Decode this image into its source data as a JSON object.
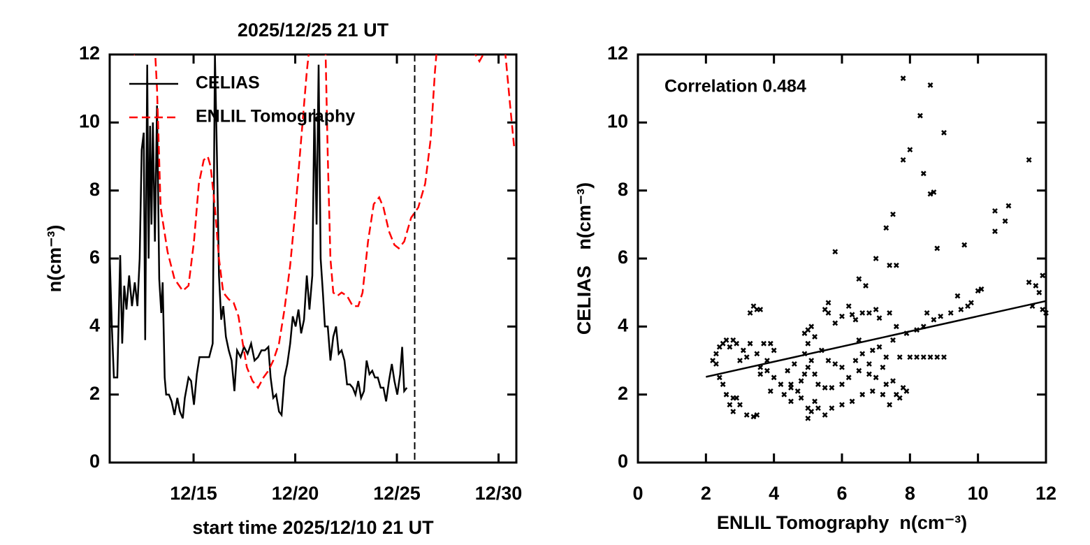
{
  "chart_data": [
    {
      "type": "line",
      "title": "2025/12/25 21 UT",
      "xlabel": "start time 2025/12/10 21 UT",
      "ylabel": "n(cm⁻³)",
      "xlim": [
        10.875,
        30.875
      ],
      "xticks": [
        {
          "value": 15,
          "label": "12/15"
        },
        {
          "value": 20,
          "label": "12/20"
        },
        {
          "value": 25,
          "label": "12/25"
        },
        {
          "value": 30,
          "label": "12/30"
        }
      ],
      "ylim": [
        0,
        12
      ],
      "yticks": [
        0,
        2,
        4,
        6,
        8,
        10,
        12
      ],
      "legend": "upper left",
      "marker_x": 25.875,
      "series": [
        {
          "name": "CELIAS",
          "color": "#000000",
          "dash": "solid",
          "x": [
            10.88,
            10.98,
            11.08,
            11.25,
            11.39,
            11.49,
            11.59,
            11.7,
            11.83,
            11.97,
            12.11,
            12.24,
            12.35,
            12.45,
            12.55,
            12.62,
            12.72,
            12.79,
            12.86,
            12.93,
            13.0,
            13.1,
            13.2,
            13.31,
            13.41,
            13.48,
            13.58,
            13.65,
            13.79,
            13.92,
            14.06,
            14.2,
            14.33,
            14.47,
            14.57,
            14.75,
            14.88,
            15.02,
            15.16,
            15.29,
            15.77,
            15.94,
            16.05,
            16.15,
            16.25,
            16.36,
            16.46,
            16.59,
            16.73,
            16.87,
            17.01,
            17.14,
            17.31,
            17.48,
            17.66,
            17.83,
            18.0,
            18.17,
            18.34,
            18.51,
            18.68,
            18.79,
            18.92,
            19.06,
            19.2,
            19.33,
            19.47,
            19.61,
            19.75,
            19.88,
            20.02,
            20.16,
            20.29,
            20.43,
            20.57,
            20.7,
            20.84,
            20.94,
            21.05,
            21.15,
            21.25,
            21.36,
            21.46,
            21.6,
            21.73,
            21.87,
            22.01,
            22.14,
            22.28,
            22.42,
            22.55,
            22.69,
            22.83,
            22.96,
            23.1,
            23.24,
            23.38,
            23.51,
            23.65,
            23.79,
            23.92,
            24.06,
            24.2,
            24.34,
            24.47,
            24.61,
            24.75,
            24.88,
            25.02,
            25.16,
            25.26,
            25.36,
            25.49
          ],
          "values": [
            6.0,
            4.0,
            2.5,
            2.5,
            6.1,
            3.5,
            5.2,
            4.5,
            5.5,
            4.6,
            5.3,
            4.6,
            6.0,
            9.2,
            9.7,
            3.6,
            11.7,
            6.0,
            9.9,
            7.0,
            10.0,
            6.5,
            10.5,
            5.4,
            4.4,
            5.3,
            2.5,
            2.0,
            2.0,
            1.8,
            1.4,
            1.9,
            1.5,
            1.3,
            1.9,
            2.5,
            2.4,
            1.7,
            2.6,
            3.1,
            3.1,
            3.5,
            12.0,
            9.0,
            5.5,
            4.2,
            4.6,
            3.7,
            3.3,
            3.0,
            2.1,
            3.3,
            3.1,
            3.4,
            3.2,
            3.5,
            3.0,
            3.1,
            3.3,
            3.3,
            3.4,
            2.5,
            1.9,
            2.0,
            1.5,
            1.4,
            2.5,
            2.9,
            3.5,
            4.3,
            4.0,
            4.5,
            3.8,
            4.2,
            5.5,
            4.5,
            5.5,
            10.4,
            7.0,
            11.7,
            6.0,
            5.0,
            4.0,
            4.0,
            3.0,
            3.7,
            4.0,
            3.2,
            3.3,
            3.0,
            2.3,
            2.3,
            2.2,
            2.0,
            2.4,
            1.9,
            2.1,
            3.0,
            2.6,
            2.7,
            2.5,
            2.5,
            2.2,
            2.2,
            1.8,
            2.4,
            2.9,
            2.4,
            2.0,
            2.6,
            3.4,
            2.1,
            2.2
          ]
        },
        {
          "name": "ENLIL Tomography",
          "color": "#ff0000",
          "dash": "dashed",
          "x": [
            11.66,
            11.9,
            12.07,
            12.24,
            13.03,
            13.2,
            13.38,
            13.72,
            14.06,
            14.47,
            14.75,
            15.02,
            15.26,
            15.5,
            15.7,
            15.84,
            16.05,
            16.25,
            16.46,
            16.73,
            16.97,
            17.21,
            17.42,
            17.62,
            17.9,
            18.17,
            18.44,
            18.68,
            18.92,
            19.2,
            19.47,
            19.75,
            20.02,
            20.29,
            20.57,
            20.84,
            21.46,
            21.6,
            21.73,
            21.87,
            22.07,
            22.28,
            22.55,
            22.83,
            23.1,
            23.31,
            23.58,
            23.86,
            24.13,
            24.34,
            24.61,
            24.88,
            25.09,
            25.36,
            25.7,
            26.05,
            26.39,
            26.66,
            26.87,
            27.08,
            28.65,
            28.86,
            29.06,
            29.34,
            29.47,
            30.16,
            30.37,
            30.57,
            30.78
          ],
          "values": [
            13,
            12.0,
            12.0,
            13,
            13,
            11,
            7.5,
            6.2,
            5.4,
            5.05,
            5.2,
            6.5,
            8.2,
            8.9,
            9.0,
            8.7,
            7.5,
            6.0,
            5.0,
            4.8,
            4.7,
            4.3,
            3.5,
            2.8,
            2.4,
            2.2,
            2.5,
            2.7,
            3.0,
            3.5,
            4.5,
            5.8,
            7.5,
            9.5,
            11.5,
            13,
            13,
            9,
            6,
            5.0,
            4.9,
            5.0,
            4.9,
            4.6,
            4.6,
            5.0,
            6.5,
            7.6,
            7.8,
            7.5,
            6.8,
            6.4,
            6.3,
            6.5,
            7.2,
            7.5,
            8.2,
            9.5,
            11.5,
            13,
            13,
            12.0,
            11.8,
            12.1,
            13,
            13,
            11.8,
            10.5,
            9.2
          ]
        }
      ]
    },
    {
      "type": "scatter",
      "xlabel": "ENLIL Tomography  n(cm⁻³)",
      "ylabel": "CELIAS   n(cm⁻³)",
      "annotation": "Correlation 0.484",
      "xlim": [
        0,
        12
      ],
      "xticks": [
        0,
        2,
        4,
        6,
        8,
        10,
        12
      ],
      "ylim": [
        0,
        12
      ],
      "yticks": [
        0,
        2,
        4,
        6,
        8,
        10,
        12
      ],
      "color": "#000000",
      "fit": {
        "x": [
          2,
          12
        ],
        "values": [
          2.52,
          4.75
        ]
      },
      "x": [
        7.8,
        8.6,
        8.3,
        9.0,
        8.0,
        7.8,
        8.4,
        8.6,
        8.7,
        11.5,
        10.5,
        10.9,
        10.8,
        10.5,
        7.5,
        7.3,
        5.8,
        8.8,
        9.6,
        7.0,
        7.6,
        7.4,
        6.5,
        6.7,
        11.5,
        11.9,
        11.7,
        11.8,
        11.6,
        11.9,
        12.0,
        10.1,
        10.0,
        9.4,
        9.8,
        9.7,
        9.5,
        9.2,
        8.9,
        8.5,
        8.7,
        8.4,
        7.9,
        8.2,
        7.6,
        7.4,
        7.1,
        7.0,
        6.8,
        6.6,
        6.4,
        6.3,
        6.2,
        6.0,
        5.8,
        5.6,
        5.5,
        5.6,
        3.4,
        3.5,
        3.3,
        3.6,
        5.0,
        5.1,
        4.9,
        5.2,
        5.0,
        4.9,
        5.1,
        5.0,
        5.2,
        4.8,
        5.3,
        5.5,
        5.7,
        6.0,
        6.2,
        6.5,
        6.8,
        7.0,
        7.3,
        7.5,
        7.8,
        7.9,
        7.7,
        7.6,
        7.4,
        7.2,
        6.9,
        6.6,
        6.3,
        6.0,
        5.7,
        5.5,
        5.3,
        5.1,
        5.0,
        5.0,
        5.2,
        4.8,
        4.7,
        4.5,
        4.2,
        4.0,
        3.8,
        3.6,
        4.4,
        4.6,
        4.9,
        5.4,
        5.6,
        5.8,
        6.0,
        6.4,
        6.6,
        6.9,
        7.1,
        7.3,
        7.7,
        8.0,
        8.2,
        8.4,
        8.6,
        8.8,
        9.0,
        7.5,
        6.5,
        6.8,
        7.2,
        2.3,
        2.4,
        2.3,
        2.2,
        2.5,
        2.6,
        2.7,
        2.8,
        2.9,
        3.1,
        3.3,
        3.5,
        3.7,
        3.9,
        4.0,
        3.0,
        3.2,
        3.8,
        3.6,
        2.5,
        2.6,
        2.7,
        2.8,
        2.9,
        2.8,
        3.0,
        3.2,
        3.4,
        3.5,
        2.4,
        4.3,
        4.5,
        4.5,
        3.9
      ],
      "values": [
        11.3,
        11.1,
        10.2,
        9.7,
        9.2,
        8.9,
        8.5,
        7.9,
        7.95,
        8.9,
        7.4,
        7.55,
        7.1,
        6.8,
        7.3,
        6.9,
        6.2,
        6.3,
        6.4,
        6.0,
        5.8,
        5.8,
        5.4,
        5.2,
        5.3,
        5.5,
        5.2,
        5.0,
        4.6,
        4.5,
        4.4,
        5.1,
        5.05,
        4.9,
        4.7,
        4.6,
        4.5,
        4.4,
        4.3,
        4.4,
        4.2,
        4.0,
        3.8,
        3.9,
        4.0,
        4.4,
        4.25,
        4.5,
        4.4,
        4.4,
        4.2,
        4.35,
        4.6,
        4.3,
        4.1,
        4.7,
        4.5,
        4.4,
        4.6,
        4.5,
        4.4,
        4.5,
        3.9,
        4.0,
        3.8,
        3.7,
        3.5,
        3.2,
        3.0,
        2.8,
        2.6,
        2.4,
        2.3,
        2.2,
        2.2,
        2.3,
        2.5,
        2.7,
        2.6,
        2.5,
        2.3,
        2.4,
        2.2,
        2.1,
        1.9,
        2.0,
        1.7,
        2.0,
        2.1,
        2.0,
        1.8,
        1.7,
        1.6,
        1.4,
        1.6,
        1.5,
        1.3,
        1.6,
        1.8,
        1.9,
        2.1,
        2.2,
        2.3,
        2.5,
        2.7,
        2.6,
        2.7,
        2.9,
        2.6,
        3.3,
        3.0,
        2.9,
        2.8,
        3.0,
        3.2,
        3.3,
        3.4,
        3.1,
        3.1,
        3.1,
        3.1,
        3.1,
        3.1,
        3.1,
        3.1,
        3.6,
        3.6,
        2.9,
        2.8,
        3.2,
        3.4,
        2.9,
        3.0,
        3.5,
        3.6,
        3.4,
        3.6,
        3.5,
        3.3,
        3.5,
        3.2,
        3.5,
        3.5,
        3.3,
        3.0,
        3.1,
        3.0,
        2.8,
        2.3,
        2.0,
        1.7,
        1.9,
        1.9,
        1.5,
        1.7,
        1.4,
        1.35,
        1.4,
        2.5,
        2.0,
        1.8,
        2.3,
        2.1
      ]
    }
  ]
}
